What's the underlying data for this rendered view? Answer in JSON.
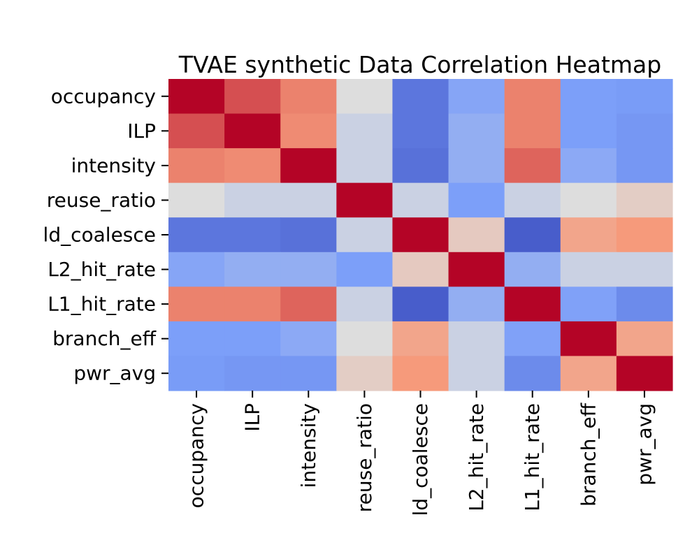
{
  "chart_data": {
    "type": "heatmap",
    "title": "TVAE synthetic Data Correlation Heatmap",
    "xlabel": "",
    "ylabel": "",
    "colormap": "coolwarm",
    "value_range": [
      -1,
      1
    ],
    "colorbar": false,
    "rows": [
      "occupancy",
      "ILP",
      "intensity",
      "reuse_ratio",
      "ld_coalesce",
      "L2_hit_rate",
      "L1_hit_rate",
      "branch_eff",
      "pwr_avg"
    ],
    "columns": [
      "occupancy",
      "ILP",
      "intensity",
      "reuse_ratio",
      "ld_coalesce",
      "L2_hit_rate",
      "L1_hit_rate",
      "branch_eff",
      "pwr_avg"
    ],
    "values": [
      [
        1.0,
        0.75,
        0.58,
        0.0,
        -0.75,
        -0.45,
        0.58,
        -0.5,
        -0.52
      ],
      [
        0.75,
        1.0,
        0.55,
        -0.1,
        -0.75,
        -0.38,
        0.58,
        -0.5,
        -0.55
      ],
      [
        0.58,
        0.55,
        1.0,
        -0.1,
        -0.78,
        -0.38,
        0.68,
        -0.42,
        -0.55
      ],
      [
        0.0,
        -0.1,
        -0.1,
        1.0,
        -0.1,
        -0.5,
        -0.1,
        0.0,
        0.12
      ],
      [
        -0.75,
        -0.75,
        -0.78,
        -0.1,
        1.0,
        0.15,
        -0.9,
        0.42,
        0.5
      ],
      [
        -0.45,
        -0.38,
        -0.38,
        -0.5,
        0.15,
        1.0,
        -0.38,
        -0.1,
        -0.1
      ],
      [
        0.58,
        0.58,
        0.68,
        -0.1,
        -0.9,
        -0.38,
        1.0,
        -0.48,
        -0.62
      ],
      [
        -0.5,
        -0.5,
        -0.42,
        0.0,
        0.42,
        -0.1,
        -0.48,
        1.0,
        0.42
      ],
      [
        -0.52,
        -0.55,
        -0.55,
        0.12,
        0.5,
        -0.1,
        -0.62,
        0.42,
        1.0
      ]
    ]
  }
}
